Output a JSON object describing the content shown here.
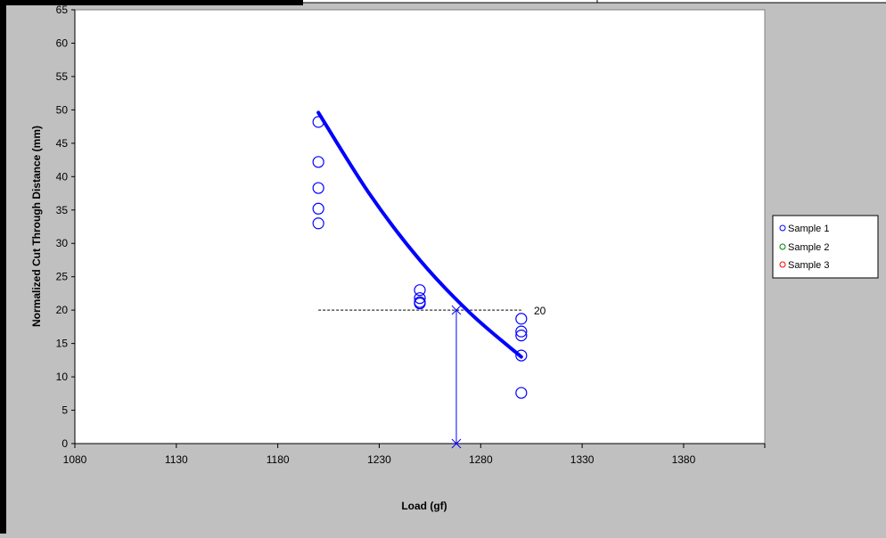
{
  "colors": {
    "background": "#c0c0c0",
    "plot_area": "#ffffff",
    "series": "#0000ff",
    "sample2": "#008000",
    "sample3": "#ff0000"
  },
  "chart_data": {
    "type": "scatter",
    "title": "",
    "xlabel": "Load (gf)",
    "ylabel": "Normalized Cut Through Distance (mm)",
    "xlim": [
      1080,
      1420
    ],
    "ylim": [
      0,
      65
    ],
    "x_ticks": [
      "1080",
      "1130",
      "1180",
      "1230",
      "1280",
      "1330",
      "1380"
    ],
    "y_ticks": [
      "0",
      "5",
      "10",
      "15",
      "20",
      "25",
      "30",
      "35",
      "40",
      "45",
      "50",
      "55",
      "60",
      "65"
    ],
    "grid": false,
    "legend_position": "right",
    "series": [
      {
        "name": "Sample 1",
        "color": "#0000ff",
        "marker": "circle",
        "points": [
          [
            1200,
            48.2
          ],
          [
            1200,
            42.2
          ],
          [
            1200,
            38.3
          ],
          [
            1200,
            35.2
          ],
          [
            1200,
            33.0
          ],
          [
            1250,
            23.0
          ],
          [
            1250,
            21.8
          ],
          [
            1250,
            21.2
          ],
          [
            1250,
            21.0
          ],
          [
            1300,
            18.7
          ],
          [
            1300,
            16.8
          ],
          [
            1300,
            16.2
          ],
          [
            1300,
            13.2
          ],
          [
            1300,
            7.6
          ]
        ]
      },
      {
        "name": "Sample 2",
        "color": "#008000",
        "marker": "circle",
        "points": []
      },
      {
        "name": "Sample 3",
        "color": "#ff0000",
        "marker": "circle",
        "points": []
      }
    ],
    "fit_curve": {
      "color": "#0000ff",
      "points": [
        [
          1200,
          49.6
        ],
        [
          1225,
          37.5
        ],
        [
          1250,
          27.5
        ],
        [
          1275,
          19.5
        ],
        [
          1300,
          13.0
        ]
      ]
    },
    "reference_line": {
      "y": 20,
      "x_start": 1200,
      "x_end": 1300,
      "label": "20",
      "style": "dashed"
    },
    "intersection": {
      "x": 1268,
      "y": 20,
      "marker": "x"
    }
  }
}
